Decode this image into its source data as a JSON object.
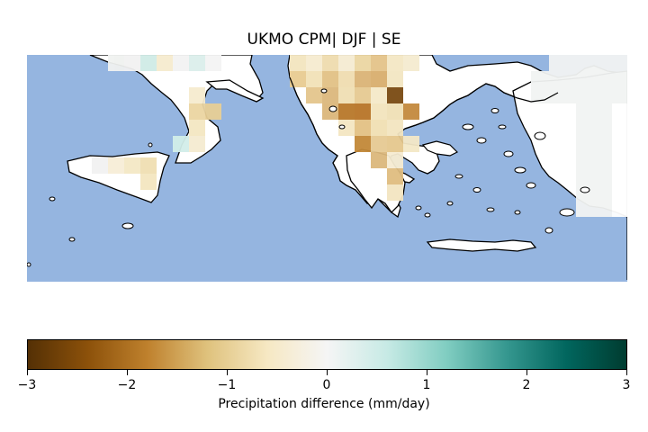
{
  "title": "UKMO CPM| DJF | SE",
  "colorbar": {
    "label": "Precipitation difference (mm/day)",
    "min": -3,
    "max": 3,
    "ticks": [
      "−3",
      "−2",
      "−1",
      "0",
      "1",
      "2",
      "3"
    ],
    "colormap": "BrBG",
    "stops": [
      "#543005",
      "#8c510a",
      "#bf812d",
      "#dfc27d",
      "#f6e8c3",
      "#f5f5f5",
      "#c7eae5",
      "#80cdc1",
      "#35978f",
      "#01665e",
      "#003c30"
    ]
  },
  "colors": {
    "sea": "#95b5e0",
    "land_no_data": "#ffffff",
    "coastline": "#000000"
  },
  "map": {
    "season": "DJF",
    "region": "SE",
    "model": "UKMO CPM"
  }
}
